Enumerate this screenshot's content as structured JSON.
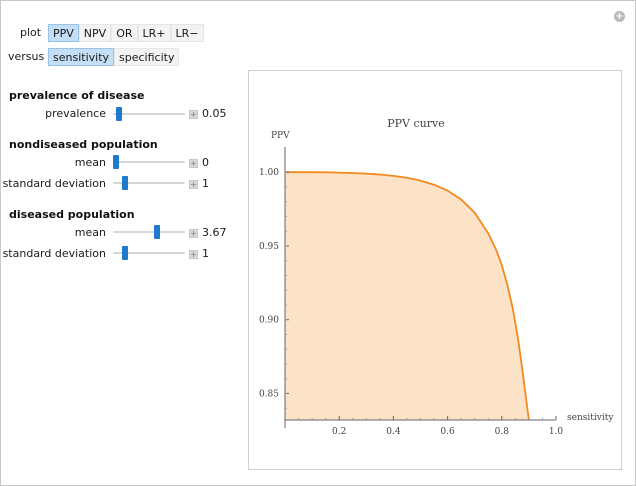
{
  "controls": {
    "plot_label": "plot",
    "plot_options": [
      "PPV",
      "NPV",
      "OR",
      "LR+",
      "LR−"
    ],
    "plot_selected": 0,
    "versus_label": "versus",
    "versus_options": [
      "sensitivity",
      "specificity"
    ],
    "versus_selected": 0
  },
  "sections": {
    "prevalence_title": "prevalence of disease",
    "nondiseased_title": "nondiseased population",
    "diseased_title": "diseased population"
  },
  "sliders": {
    "prevalence": {
      "label": "prevalence",
      "value": "0.05",
      "fraction": 0.05
    },
    "nd_mean": {
      "label": "mean",
      "value": "0",
      "fraction": 0.0
    },
    "nd_sd": {
      "label": "standard deviation",
      "value": "1",
      "fraction": 0.13
    },
    "d_mean": {
      "label": "mean",
      "value": "3.67",
      "fraction": 0.62
    },
    "d_sd": {
      "label": "standard deviation",
      "value": "1",
      "fraction": 0.13
    }
  },
  "icons": {
    "corner": "plus-circle-icon",
    "increment": "plus-icon"
  },
  "chart_data": {
    "type": "area",
    "title": "PPV curve",
    "xlabel": "sensitivity",
    "ylabel": "PPV",
    "xlim": [
      0,
      1.0
    ],
    "ylim": [
      0.832,
      1.013
    ],
    "xticks": [
      "0.2",
      "0.4",
      "0.6",
      "0.8",
      "1.0"
    ],
    "yticks": [
      "0.85",
      "0.90",
      "0.95",
      "1.00"
    ],
    "line_color": "#f28a1e",
    "fill_color": "#fce3c8",
    "series": [
      {
        "x": [
          0,
          0.05,
          0.1,
          0.15,
          0.2,
          0.25,
          0.3,
          0.35,
          0.4,
          0.45,
          0.5,
          0.55,
          0.6,
          0.65,
          0.7,
          0.75,
          0.78,
          0.8,
          0.82,
          0.84,
          0.86,
          0.87,
          0.88,
          0.89,
          0.9,
          0.91,
          0.915
        ],
        "y": [
          1.0,
          1.0,
          1.0,
          0.9999,
          0.9997,
          0.9994,
          0.999,
          0.9984,
          0.9975,
          0.9962,
          0.9943,
          0.9915,
          0.9875,
          0.9815,
          0.9725,
          0.9585,
          0.947,
          0.937,
          0.924,
          0.908,
          0.887,
          0.874,
          0.86,
          0.846,
          0.832,
          0.82,
          0.81
        ]
      }
    ]
  }
}
